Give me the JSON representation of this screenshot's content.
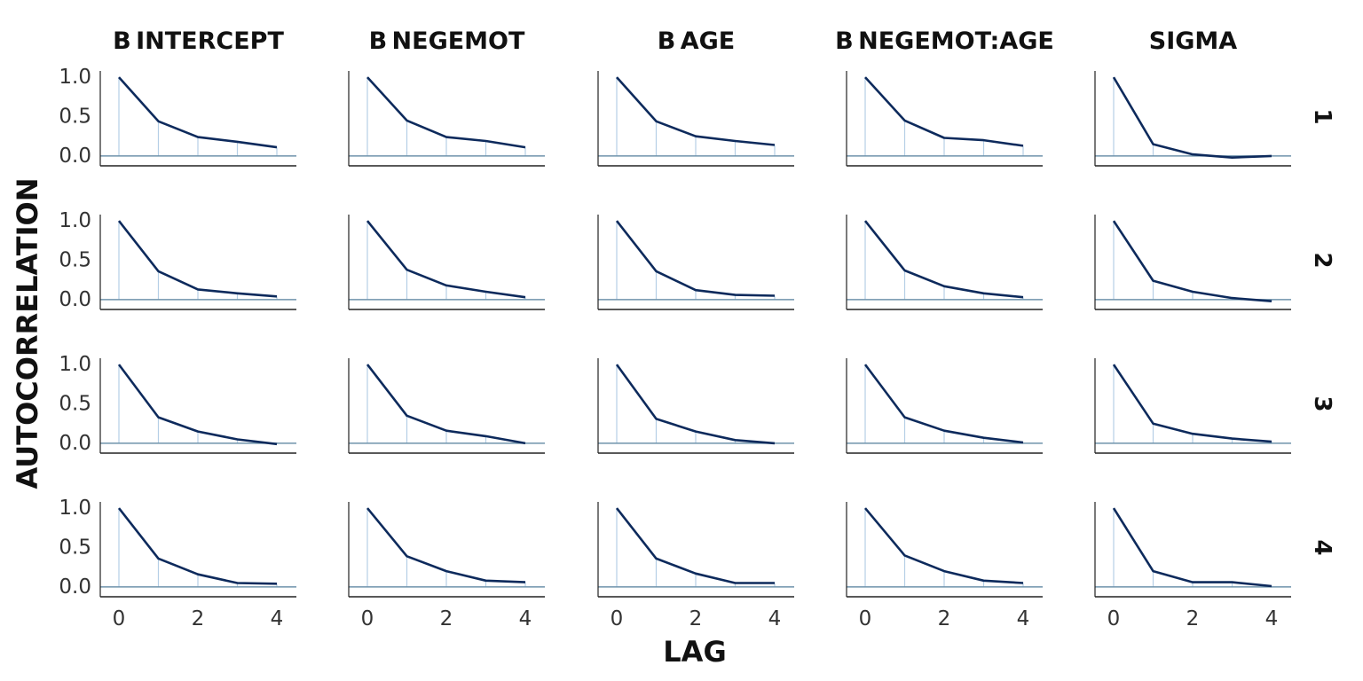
{
  "chart_data": {
    "type": "line",
    "xlabel": "LAG",
    "ylabel": "AUTOCORRELATION",
    "panels": [
      "B INTERCEPT",
      "B NEGEMOT",
      "B AGE",
      "B NEGEMOT:AGE",
      "SIGMA"
    ],
    "rows": [
      "1",
      "2",
      "3",
      "4"
    ],
    "x": [
      0,
      1,
      2,
      3,
      4
    ],
    "x_ticks": [
      "0",
      "2",
      "4"
    ],
    "xlim": [
      -0.5,
      4.5
    ],
    "y_ticks": [
      "0.0",
      "0.5",
      "1.0"
    ],
    "ylim": [
      -0.08,
      1.08
    ],
    "grid": false,
    "colors": {
      "line": "#0d2a5c",
      "stem": "#b5cfe6",
      "zero": "#6f93ab",
      "axis": "#222222"
    },
    "values": [
      [
        [
          1.0,
          0.44,
          0.24,
          0.18,
          0.11
        ],
        [
          1.0,
          0.45,
          0.24,
          0.19,
          0.11
        ],
        [
          1.0,
          0.44,
          0.25,
          0.19,
          0.14
        ],
        [
          1.0,
          0.45,
          0.23,
          0.2,
          0.13
        ],
        [
          1.0,
          0.15,
          0.02,
          -0.02,
          0.0
        ]
      ],
      [
        [
          1.0,
          0.36,
          0.13,
          0.08,
          0.04
        ],
        [
          1.0,
          0.38,
          0.18,
          0.1,
          0.03
        ],
        [
          1.0,
          0.36,
          0.12,
          0.06,
          0.05
        ],
        [
          1.0,
          0.37,
          0.17,
          0.08,
          0.03
        ],
        [
          1.0,
          0.24,
          0.1,
          0.02,
          -0.02
        ]
      ],
      [
        [
          1.0,
          0.33,
          0.15,
          0.05,
          -0.01
        ],
        [
          1.0,
          0.35,
          0.16,
          0.09,
          0.0
        ],
        [
          1.0,
          0.31,
          0.15,
          0.04,
          0.0
        ],
        [
          1.0,
          0.33,
          0.16,
          0.07,
          0.01
        ],
        [
          1.0,
          0.25,
          0.12,
          0.06,
          0.02
        ]
      ],
      [
        [
          1.0,
          0.36,
          0.16,
          0.05,
          0.04
        ],
        [
          1.0,
          0.39,
          0.2,
          0.08,
          0.06
        ],
        [
          1.0,
          0.36,
          0.17,
          0.05,
          0.05
        ],
        [
          1.0,
          0.4,
          0.2,
          0.08,
          0.05
        ],
        [
          1.0,
          0.2,
          0.06,
          0.06,
          0.01
        ]
      ]
    ]
  }
}
